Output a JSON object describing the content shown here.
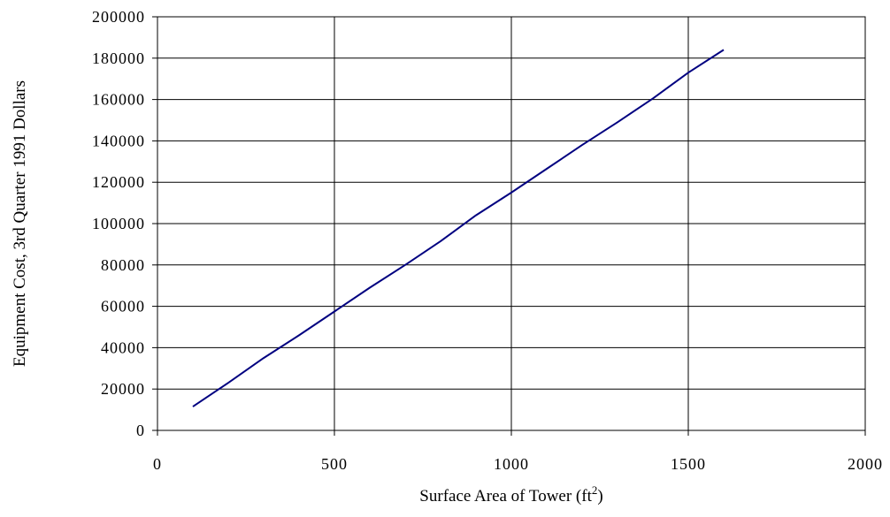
{
  "chart_data": {
    "type": "line",
    "title": "",
    "xlabel": "Surface Area of Tower (ft",
    "xlabel_superscript": "2",
    "xlabel_suffix": ")",
    "ylabel": "Equipment Cost, 3rd Quarter 1991 Dollars",
    "xlim": [
      0,
      2000
    ],
    "ylim": [
      0,
      200000
    ],
    "x_ticks": [
      0,
      500,
      1000,
      1500,
      2000
    ],
    "y_ticks": [
      0,
      20000,
      40000,
      60000,
      80000,
      100000,
      120000,
      140000,
      160000,
      180000,
      200000
    ],
    "grid": true,
    "legend": "none",
    "series": [
      {
        "color": "#000080",
        "x": [
          100,
          200,
          300,
          400,
          500,
          600,
          700,
          800,
          900,
          1000,
          1100,
          1200,
          1300,
          1400,
          1500,
          1600
        ],
        "y": [
          11500,
          23000,
          35000,
          46000,
          57500,
          69000,
          80000,
          91500,
          104000,
          115000,
          126500,
          138000,
          149000,
          160500,
          173000,
          184000
        ]
      }
    ]
  }
}
